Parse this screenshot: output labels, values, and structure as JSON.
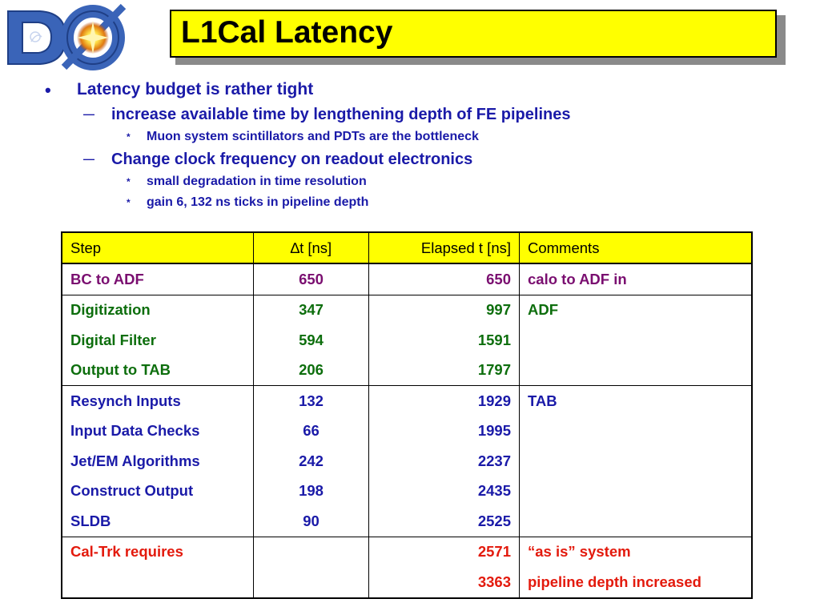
{
  "slide": {
    "title": "L1Cal Latency",
    "bullets": [
      {
        "level": 1,
        "marker": "•",
        "text": "Latency budget is rather tight"
      },
      {
        "level": 2,
        "marker": "—",
        "text": "increase available time by lengthening depth of FE pipelines"
      },
      {
        "level": 3,
        "marker": "*",
        "text": "Muon system scintillators and PDTs are the bottleneck"
      },
      {
        "level": 2,
        "marker": "—",
        "text": "Change clock frequency on readout electronics"
      },
      {
        "level": 3,
        "marker": "*",
        "text": "small degradation in time resolution"
      },
      {
        "level": 3,
        "marker": "*",
        "text": "gain 6, 132 ns ticks in pipeline depth"
      }
    ]
  },
  "table": {
    "headers": [
      "Step",
      "∆t [ns]",
      "Elapsed t [ns]",
      "Comments"
    ],
    "rows": [
      {
        "step": "BC to ADF",
        "dt": "650",
        "elapsed": "650",
        "comment": "calo to ADF in",
        "color": "#7a0e70"
      },
      {
        "step": "Digitization",
        "dt": "347",
        "elapsed": "997",
        "comment": "ADF",
        "color": "#0d6e0d"
      },
      {
        "step": "Digital Filter",
        "dt": "594",
        "elapsed": "1591",
        "comment": "",
        "color": "#0d6e0d"
      },
      {
        "step": "Output to TAB",
        "dt": "206",
        "elapsed": "1797",
        "comment": "",
        "color": "#0d6e0d"
      },
      {
        "step": "Resynch Inputs",
        "dt": "132",
        "elapsed": "1929",
        "comment": "TAB",
        "color": "#1a1aa8"
      },
      {
        "step": "Input Data Checks",
        "dt": "66",
        "elapsed": "1995",
        "comment": "",
        "color": "#1a1aa8"
      },
      {
        "step": "Jet/EM Algorithms",
        "dt": "242",
        "elapsed": "2237",
        "comment": "",
        "color": "#1a1aa8"
      },
      {
        "step": "Construct Output",
        "dt": "198",
        "elapsed": "2435",
        "comment": "",
        "color": "#1a1aa8"
      },
      {
        "step": "SLDB",
        "dt": "90",
        "elapsed": "2525",
        "comment": "",
        "color": "#1a1aa8"
      },
      {
        "step": "Cal-Trk requires",
        "dt": "",
        "elapsed": "2571",
        "comment": "“as is” system",
        "color": "#e31a0d"
      },
      {
        "step": "",
        "dt": "",
        "elapsed": "3363",
        "comment": "pipeline depth increased",
        "color": "#e31a0d"
      }
    ]
  },
  "logo": {
    "text": "DØ",
    "colors": {
      "blue": "#3a64b8",
      "gold": "#f5c400"
    }
  }
}
